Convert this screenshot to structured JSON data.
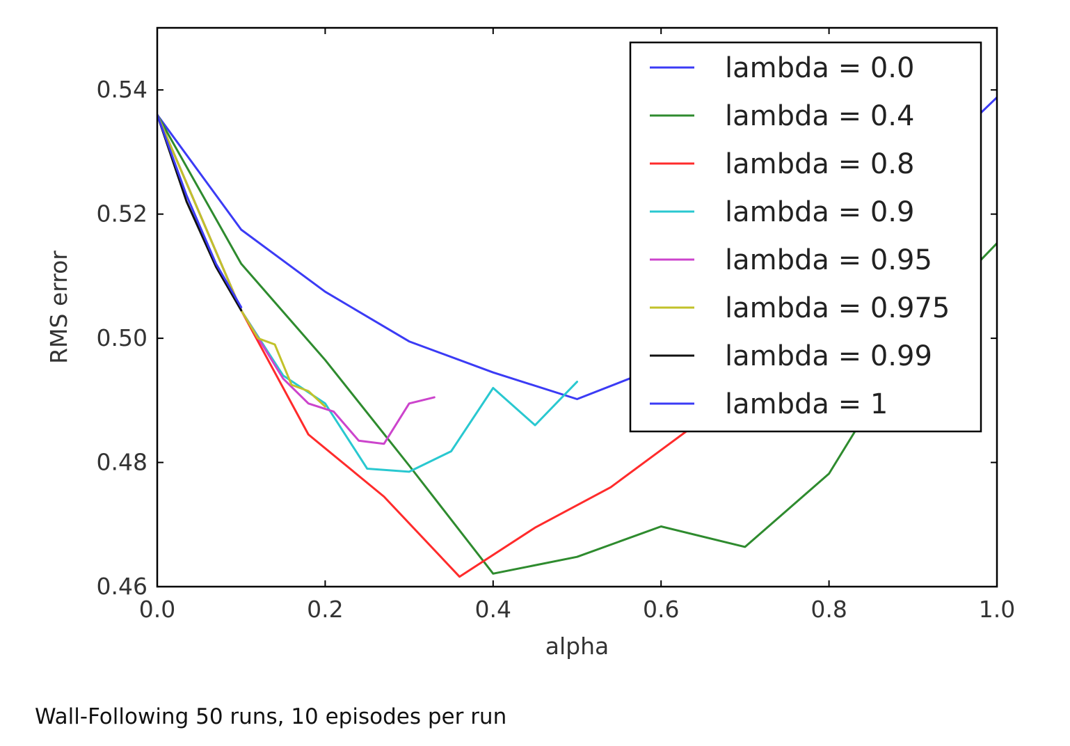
{
  "chart_data": {
    "type": "line",
    "title": "",
    "xlabel": "alpha",
    "ylabel": "RMS error",
    "xlim": [
      0.0,
      1.0
    ],
    "ylim": [
      0.46,
      0.55
    ],
    "xticks": [
      "0.0",
      "0.2",
      "0.4",
      "0.6",
      "0.8",
      "1.0"
    ],
    "yticks": [
      "0.46",
      "0.48",
      "0.50",
      "0.52",
      "0.54"
    ],
    "grid": false,
    "legend_position": "top-right",
    "series": [
      {
        "name": "lambda = 0.0",
        "color": "#3b3bf5",
        "x": [
          0.0,
          0.1,
          0.2,
          0.3,
          0.4,
          0.5,
          0.6,
          0.7,
          0.8,
          0.9,
          0.98,
          1.0
        ],
        "y": [
          0.536,
          0.5175,
          0.5075,
          0.4995,
          0.4945,
          0.4902,
          0.4955,
          0.504,
          0.513,
          0.524,
          0.5362,
          0.5388
        ]
      },
      {
        "name": "lambda = 0.4",
        "color": "#2e8b2e",
        "x": [
          0.0,
          0.1,
          0.2,
          0.3,
          0.4,
          0.5,
          0.6,
          0.7,
          0.8,
          0.84,
          0.9,
          0.98,
          1.0
        ],
        "y": [
          0.536,
          0.512,
          0.4965,
          0.4795,
          0.4621,
          0.4648,
          0.4697,
          0.4664,
          0.4782,
          0.487,
          0.498,
          0.5125,
          0.5153
        ]
      },
      {
        "name": "lambda = 0.8",
        "color": "#ff2b2b",
        "x": [
          0.0,
          0.1,
          0.18,
          0.27,
          0.36,
          0.45,
          0.54,
          0.6,
          0.64
        ],
        "y": [
          0.536,
          0.5045,
          0.4845,
          0.4745,
          0.4616,
          0.4695,
          0.476,
          0.482,
          0.486
        ]
      },
      {
        "name": "lambda = 0.9",
        "color": "#29c8d0",
        "x": [
          0.0,
          0.1,
          0.15,
          0.2,
          0.25,
          0.3,
          0.35,
          0.4,
          0.45,
          0.5
        ],
        "y": [
          0.536,
          0.5045,
          0.494,
          0.4895,
          0.479,
          0.4785,
          0.4818,
          0.492,
          0.486,
          0.493
        ]
      },
      {
        "name": "lambda = 0.95",
        "color": "#cc44cc",
        "x": [
          0.0,
          0.1,
          0.15,
          0.18,
          0.21,
          0.24,
          0.27,
          0.3,
          0.33
        ],
        "y": [
          0.536,
          0.5045,
          0.4935,
          0.4895,
          0.4882,
          0.4835,
          0.483,
          0.4895,
          0.4905
        ]
      },
      {
        "name": "lambda = 0.975",
        "color": "#c2c22a",
        "x": [
          0.0,
          0.1,
          0.12,
          0.14,
          0.16,
          0.18,
          0.2
        ],
        "y": [
          0.536,
          0.5045,
          0.5,
          0.499,
          0.4925,
          0.4915,
          0.489
        ]
      },
      {
        "name": "lambda = 0.99",
        "color": "#111111",
        "x": [
          0.0,
          0.035,
          0.07,
          0.1
        ],
        "y": [
          0.536,
          0.522,
          0.5115,
          0.5045
        ]
      },
      {
        "name": "lambda = 1",
        "color": "#3b3bf5",
        "x": [
          0.0,
          0.035,
          0.07,
          0.1
        ],
        "y": [
          0.536,
          0.523,
          0.512,
          0.505
        ]
      }
    ]
  },
  "caption": "Wall-Following 50 runs, 10 episodes per run"
}
